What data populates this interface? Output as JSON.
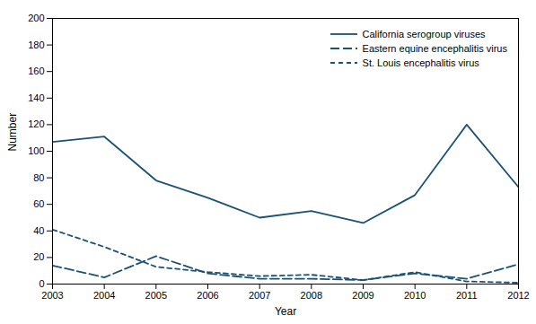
{
  "chart_data": {
    "type": "line",
    "x": [
      2003,
      2004,
      2005,
      2006,
      2007,
      2008,
      2009,
      2010,
      2011,
      2012
    ],
    "series": [
      {
        "name": "California serogroup viruses",
        "values": [
          107,
          111,
          78,
          65,
          50,
          55,
          46,
          67,
          120,
          73
        ],
        "line_style": "solid"
      },
      {
        "name": "Eastern equine encephalitis virus",
        "values": [
          14,
          5,
          21,
          8,
          4,
          4,
          3,
          8,
          4,
          15
        ],
        "line_style": "longdash"
      },
      {
        "name": "St. Louis encephalitis virus",
        "values": [
          41,
          28,
          13,
          9,
          6,
          7,
          3,
          9,
          2,
          1
        ],
        "line_style": "dash"
      }
    ],
    "color": "#1a5276",
    "xlabel": "Year",
    "ylabel": "Number",
    "xlim": [
      2003,
      2012
    ],
    "xticks": [
      2003,
      2004,
      2005,
      2006,
      2007,
      2008,
      2009,
      2010,
      2011,
      2012
    ],
    "ylim": [
      0,
      200
    ],
    "yticks": [
      0,
      20,
      40,
      60,
      80,
      100,
      120,
      140,
      160,
      180,
      200
    ],
    "grid": false,
    "legend": "upper right"
  }
}
